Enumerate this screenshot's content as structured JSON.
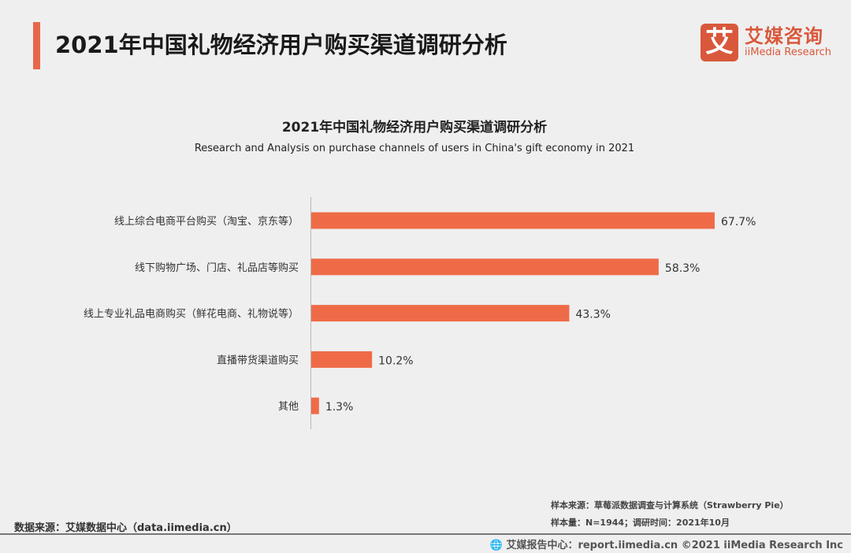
{
  "header": {
    "title": "2021年中国礼物经济用户购买渠道调研分析",
    "logo_icon": "艾",
    "logo_cn": "艾媒咨询",
    "logo_en": "iiMedia Research",
    "accent": "#e8674a"
  },
  "chart_data": {
    "type": "bar",
    "orientation": "horizontal",
    "title": "2021年中国礼物经济用户购买渠道调研分析",
    "subtitle": "Research and Analysis on purchase channels of users in China's gift economy in 2021",
    "categories": [
      "线上综合电商平台购买（淘宝、京东等）",
      "线下购物广场、门店、礼品店等购买",
      "线上专业礼品电商购买（鲜花电商、礼物说等）",
      "直播带货渠道购买",
      "其他"
    ],
    "values": [
      67.7,
      58.3,
      43.3,
      10.2,
      1.3
    ],
    "labels": [
      "67.7%",
      "58.3%",
      "43.3%",
      "10.2%",
      "1.3%"
    ],
    "unit": "%",
    "bar_color": "#ef6b47",
    "grid": false
  },
  "footer": {
    "source": "数据来源：艾媒数据中心（data.iimedia.cn）",
    "sample_source": "样本来源：草莓派数据调查与计算系统（Strawberry Pie）",
    "sample_size": "样本量：N=1944；调研时间：2021年10月",
    "copyright": "🌐 艾媒报告中心：report.iimedia.cn   ©2021  iiMedia Research  Inc"
  }
}
